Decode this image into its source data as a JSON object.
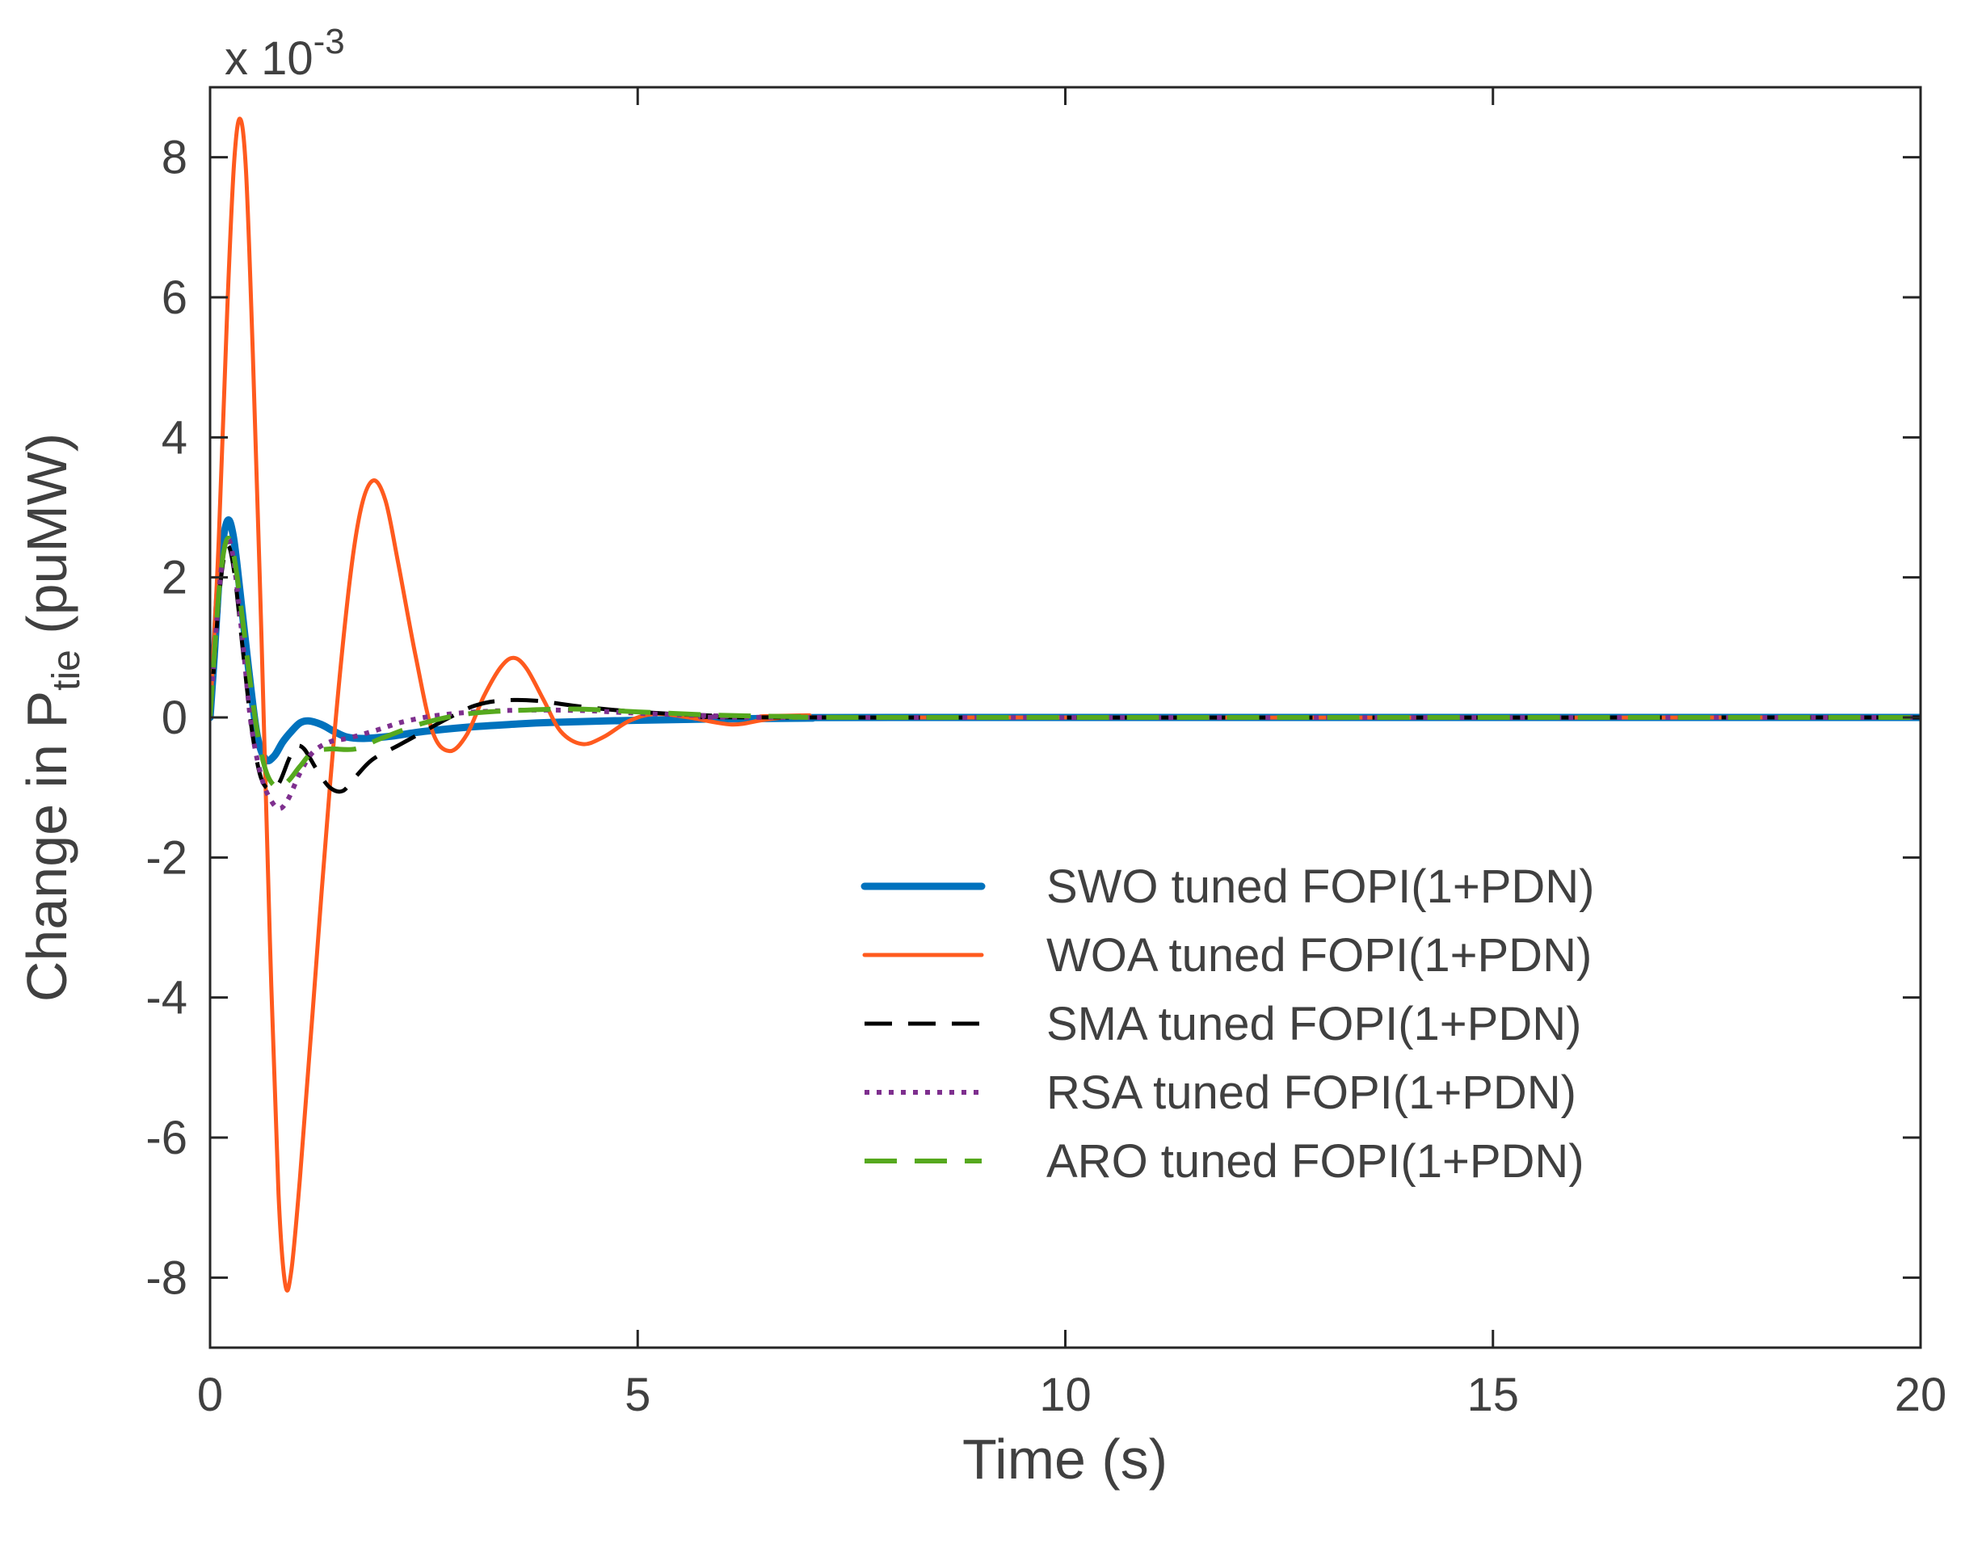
{
  "chart_data": {
    "type": "line",
    "title": "",
    "xlabel": "Time (s)",
    "ylabel": {
      "prefix": "Change in P",
      "subscript": "tie",
      "suffix": " (puMW)"
    },
    "y_multiplier": {
      "base": "x 10",
      "exponent": "-3"
    },
    "xlim": [
      0,
      20
    ],
    "ylim": [
      -9,
      9
    ],
    "xticks": [
      0,
      5,
      10,
      15,
      20
    ],
    "yticks": [
      -8,
      -6,
      -4,
      -2,
      0,
      2,
      4,
      6,
      8
    ],
    "grid": false,
    "legend_position": "lower-right",
    "series": [
      {
        "name": "SWO tuned FOPI(1+PDN)",
        "color": "#0072BD",
        "style": "solid-thick",
        "points": [
          [
            0,
            0
          ],
          [
            0.05,
            0.9
          ],
          [
            0.12,
            2.2
          ],
          [
            0.2,
            2.8
          ],
          [
            0.27,
            2.6
          ],
          [
            0.35,
            1.8
          ],
          [
            0.45,
            0.7
          ],
          [
            0.55,
            -0.25
          ],
          [
            0.65,
            -0.6
          ],
          [
            0.75,
            -0.55
          ],
          [
            0.85,
            -0.35
          ],
          [
            0.95,
            -0.2
          ],
          [
            1.05,
            -0.08
          ],
          [
            1.15,
            -0.05
          ],
          [
            1.3,
            -0.1
          ],
          [
            1.45,
            -0.2
          ],
          [
            1.6,
            -0.28
          ],
          [
            1.8,
            -0.3
          ],
          [
            2.1,
            -0.27
          ],
          [
            2.5,
            -0.2
          ],
          [
            3,
            -0.14
          ],
          [
            3.5,
            -0.1
          ],
          [
            4,
            -0.07
          ],
          [
            5,
            -0.04
          ],
          [
            6,
            -0.02
          ],
          [
            7,
            -0.01
          ],
          [
            8,
            0
          ],
          [
            20,
            0
          ]
        ]
      },
      {
        "name": "WOA tuned FOPI(1+PDN)",
        "color": "#FF5A1E",
        "style": "solid",
        "points": [
          [
            0,
            0
          ],
          [
            0.1,
            2.5
          ],
          [
            0.2,
            5.8
          ],
          [
            0.28,
            7.9
          ],
          [
            0.35,
            8.55
          ],
          [
            0.42,
            7.8
          ],
          [
            0.5,
            5.2
          ],
          [
            0.6,
            1.2
          ],
          [
            0.7,
            -3.2
          ],
          [
            0.8,
            -6.8
          ],
          [
            0.88,
            -8.1
          ],
          [
            0.95,
            -7.9
          ],
          [
            1.05,
            -6.6
          ],
          [
            1.2,
            -4.2
          ],
          [
            1.4,
            -1
          ],
          [
            1.6,
            1.6
          ],
          [
            1.75,
            2.9
          ],
          [
            1.9,
            3.38
          ],
          [
            2.05,
            3.1
          ],
          [
            2.2,
            2.2
          ],
          [
            2.4,
            0.9
          ],
          [
            2.6,
            -0.2
          ],
          [
            2.8,
            -0.48
          ],
          [
            3,
            -0.25
          ],
          [
            3.2,
            0.3
          ],
          [
            3.4,
            0.72
          ],
          [
            3.55,
            0.85
          ],
          [
            3.7,
            0.7
          ],
          [
            3.9,
            0.25
          ],
          [
            4.1,
            -0.2
          ],
          [
            4.35,
            -0.38
          ],
          [
            4.6,
            -0.28
          ],
          [
            4.9,
            -0.05
          ],
          [
            5.2,
            0.05
          ],
          [
            5.6,
            0
          ],
          [
            6.1,
            -0.1
          ],
          [
            6.5,
            -0.03
          ],
          [
            7,
            0.03
          ],
          [
            7.5,
            0
          ],
          [
            20,
            0
          ]
        ]
      },
      {
        "name": "SMA tuned FOPI(1+PDN)",
        "color": "#000000",
        "style": "dashed",
        "points": [
          [
            0,
            0
          ],
          [
            0.05,
            0.8
          ],
          [
            0.12,
            1.9
          ],
          [
            0.2,
            2.45
          ],
          [
            0.28,
            2.1
          ],
          [
            0.38,
            1
          ],
          [
            0.48,
            -0.1
          ],
          [
            0.58,
            -0.8
          ],
          [
            0.68,
            -1.02
          ],
          [
            0.8,
            -0.95
          ],
          [
            0.92,
            -0.6
          ],
          [
            1,
            -0.42
          ],
          [
            1.1,
            -0.45
          ],
          [
            1.25,
            -0.75
          ],
          [
            1.4,
            -1
          ],
          [
            1.55,
            -1.05
          ],
          [
            1.7,
            -0.85
          ],
          [
            1.9,
            -0.6
          ],
          [
            2.2,
            -0.4
          ],
          [
            2.5,
            -0.2
          ],
          [
            2.8,
            0
          ],
          [
            3.1,
            0.17
          ],
          [
            3.4,
            0.24
          ],
          [
            3.8,
            0.24
          ],
          [
            4.3,
            0.16
          ],
          [
            5,
            0.08
          ],
          [
            6,
            0.02
          ],
          [
            7,
            0
          ],
          [
            20,
            0
          ]
        ]
      },
      {
        "name": "RSA tuned FOPI(1+PDN)",
        "color": "#7E2F8E",
        "style": "dotted",
        "points": [
          [
            0,
            0
          ],
          [
            0.05,
            0.9
          ],
          [
            0.12,
            2
          ],
          [
            0.2,
            2.55
          ],
          [
            0.28,
            2.2
          ],
          [
            0.38,
            1.1
          ],
          [
            0.48,
            -0.1
          ],
          [
            0.6,
            -0.85
          ],
          [
            0.72,
            -1.2
          ],
          [
            0.82,
            -1.3
          ],
          [
            0.92,
            -1.15
          ],
          [
            1.05,
            -0.8
          ],
          [
            1.2,
            -0.5
          ],
          [
            1.4,
            -0.35
          ],
          [
            1.6,
            -0.3
          ],
          [
            1.9,
            -0.2
          ],
          [
            2.3,
            -0.05
          ],
          [
            2.8,
            0.05
          ],
          [
            3.5,
            0.1
          ],
          [
            4.3,
            0.1
          ],
          [
            5,
            0.06
          ],
          [
            6,
            0.02
          ],
          [
            7,
            0
          ],
          [
            20,
            0
          ]
        ]
      },
      {
        "name": "ARO tuned FOPI(1+PDN)",
        "color": "#56A91E",
        "style": "long-dashed",
        "points": [
          [
            0,
            0
          ],
          [
            0.05,
            0.9
          ],
          [
            0.12,
            2
          ],
          [
            0.2,
            2.55
          ],
          [
            0.28,
            2.3
          ],
          [
            0.38,
            1.4
          ],
          [
            0.48,
            0.4
          ],
          [
            0.58,
            -0.4
          ],
          [
            0.68,
            -0.85
          ],
          [
            0.8,
            -1
          ],
          [
            0.92,
            -0.9
          ],
          [
            1.05,
            -0.7
          ],
          [
            1.2,
            -0.5
          ],
          [
            1.4,
            -0.45
          ],
          [
            1.7,
            -0.45
          ],
          [
            2,
            -0.3
          ],
          [
            2.5,
            -0.08
          ],
          [
            3,
            0.05
          ],
          [
            3.6,
            0.1
          ],
          [
            4.3,
            0.12
          ],
          [
            5,
            0.08
          ],
          [
            6,
            0.03
          ],
          [
            7,
            0.01
          ],
          [
            8,
            0
          ],
          [
            20,
            0
          ]
        ]
      }
    ]
  }
}
